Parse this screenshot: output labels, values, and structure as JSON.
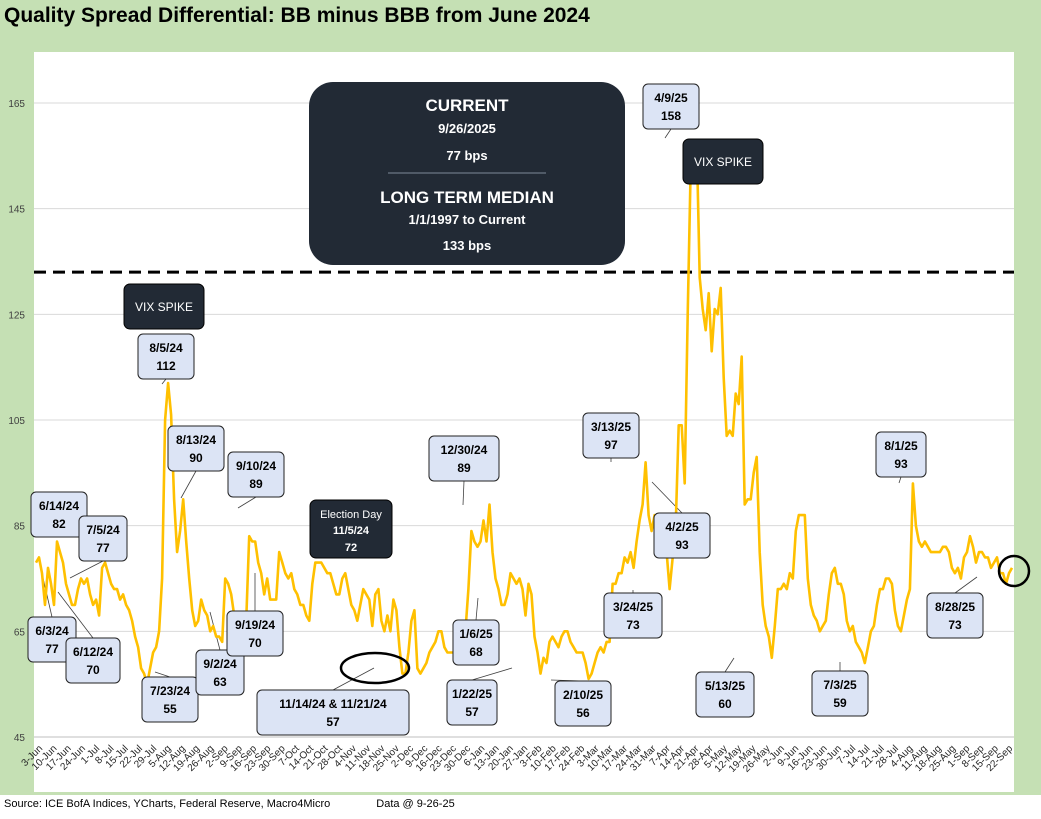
{
  "chart_data": {
    "type": "line",
    "title": "Quality Spread Differential: BB minus BBB from June 2024",
    "ylim": [
      45,
      165
    ],
    "yticks": [
      45,
      65,
      85,
      105,
      125,
      145,
      165
    ],
    "grid": "horizontal",
    "line_color": "#ffc000",
    "reference_line": {
      "value": 133,
      "style": "dashed"
    },
    "x_tick_labels": [
      "3-Jun",
      "10-Jun",
      "17-Jun",
      "24-Jun",
      "1-Jul",
      "8-Jul",
      "15-Jul",
      "22-Jul",
      "29-Jul",
      "5-Aug",
      "12-Aug",
      "19-Aug",
      "26-Aug",
      "2-Sep",
      "9-Sep",
      "16-Sep",
      "23-Sep",
      "30-Sep",
      "7-Oct",
      "14-Oct",
      "21-Oct",
      "28-Oct",
      "4-Nov",
      "11-Nov",
      "18-Nov",
      "25-Nov",
      "2-Dec",
      "9-Dec",
      "16-Dec",
      "23-Dec",
      "30-Dec",
      "6-Jan",
      "13-Jan",
      "20-Jan",
      "27-Jan",
      "3-Feb",
      "10-Feb",
      "17-Feb",
      "24-Feb",
      "3-Mar",
      "10-Mar",
      "17-Mar",
      "24-Mar",
      "31-Mar",
      "7-Apr",
      "14-Apr",
      "21-Apr",
      "28-Apr",
      "5-May",
      "12-May",
      "19-May",
      "26-May",
      "2-Jun",
      "9-Jun",
      "16-Jun",
      "23-Jun",
      "30-Jun",
      "7-Jul",
      "14-Jul",
      "21-Jul",
      "28-Jul",
      "4-Aug",
      "11-Aug",
      "18-Aug",
      "25-Aug",
      "1-Sep",
      "8-Sep",
      "15-Sep",
      "22-Sep"
    ],
    "series": [
      {
        "values": [
          78,
          79,
          76,
          70,
          77,
          74,
          70,
          82,
          80,
          78,
          74,
          72,
          70,
          70,
          73,
          75,
          74,
          75,
          72,
          70,
          71,
          68,
          77,
          78,
          76,
          74,
          73,
          73,
          71,
          72,
          70,
          69,
          67,
          64,
          62,
          58,
          57,
          55,
          58,
          61,
          62,
          65,
          75,
          105,
          112,
          106,
          90,
          80,
          84,
          90,
          82,
          75,
          69,
          66,
          67,
          71,
          69,
          68,
          65,
          66,
          64,
          64,
          63,
          75,
          74,
          72,
          68,
          64,
          67,
          66,
          67,
          83,
          82,
          82,
          78,
          76,
          72,
          75,
          71,
          71,
          71,
          80,
          78,
          76,
          75,
          76,
          73,
          72,
          70,
          70,
          68,
          67,
          74,
          78,
          78,
          78,
          77,
          76,
          76,
          74,
          72,
          72,
          75,
          76,
          73,
          70,
          69,
          67,
          70,
          73,
          72,
          71,
          66,
          72,
          73,
          67,
          65,
          68,
          65,
          71,
          69,
          62,
          57,
          57,
          61,
          67,
          69,
          58,
          57,
          58,
          59,
          61,
          62,
          63,
          65,
          65,
          62,
          61,
          61,
          61,
          61,
          62,
          63,
          65,
          73,
          84,
          82,
          81,
          82,
          86,
          82,
          89,
          80,
          75,
          73,
          70,
          70,
          72,
          76,
          75,
          74,
          75,
          73,
          68,
          74,
          72,
          64,
          61,
          57,
          60,
          59,
          63,
          64,
          63,
          62,
          64,
          65,
          65,
          63,
          62,
          61,
          61,
          61,
          59,
          56,
          57,
          59,
          61,
          62,
          61,
          63,
          63,
          74,
          74,
          76,
          76,
          79,
          78,
          80,
          77,
          82,
          86,
          89,
          97,
          87,
          84,
          87,
          83,
          86,
          82,
          80,
          73,
          79,
          85,
          104,
          104,
          93,
          125,
          153,
          153,
          158,
          132,
          126,
          122,
          129,
          118,
          126,
          125,
          130,
          113,
          102,
          103,
          102,
          110,
          108,
          117,
          89,
          90,
          90,
          95,
          98,
          80,
          70,
          66,
          64,
          60,
          66,
          73,
          73,
          74,
          73,
          76,
          75,
          84,
          87,
          87,
          87,
          75,
          70,
          68,
          67,
          65,
          66,
          67,
          72,
          76,
          77,
          74,
          74,
          72,
          67,
          65,
          66,
          63,
          62,
          61,
          59,
          62,
          65,
          66,
          70,
          73,
          73,
          75,
          75,
          74,
          69,
          66,
          65,
          68,
          71,
          73,
          93,
          85,
          82,
          81,
          82,
          81,
          80,
          80,
          80,
          80,
          81,
          81,
          80,
          77,
          76,
          77,
          75,
          79,
          80,
          83,
          81,
          78,
          80,
          80,
          79,
          79,
          77,
          78,
          79,
          76,
          76,
          74,
          76,
          77
        ]
      }
    ]
  },
  "annotations": {
    "current_box": {
      "heading": "CURRENT",
      "date": "9/26/2025",
      "value": "77 bps",
      "median_heading": "LONG TERM MEDIAN",
      "median_range": "1/1/1997 to Current",
      "median_value": "133 bps"
    },
    "vix_spike_1": "VIX SPIKE",
    "vix_spike_2": "VIX SPIKE",
    "election": {
      "line1": "Election Day",
      "line2": "11/5/24",
      "line3": "72"
    },
    "callouts": [
      {
        "date": "6/14/24",
        "value": "82"
      },
      {
        "date": "7/5/24",
        "value": "77"
      },
      {
        "date": "6/3/24",
        "value": "77"
      },
      {
        "date": "6/12/24",
        "value": "70"
      },
      {
        "date": "8/5/24",
        "value": "112"
      },
      {
        "date": "8/13/24",
        "value": "90"
      },
      {
        "date": "7/23/24",
        "value": "55"
      },
      {
        "date": "9/2/24",
        "value": "63"
      },
      {
        "date": "9/10/24",
        "value": "89"
      },
      {
        "date": "9/19/24",
        "value": "70"
      },
      {
        "date": "11/14/24 & 11/21/24",
        "value": "57"
      },
      {
        "date": "12/30/24",
        "value": "89"
      },
      {
        "date": "1/6/25",
        "value": "68"
      },
      {
        "date": "1/22/25",
        "value": "57"
      },
      {
        "date": "2/10/25",
        "value": "56"
      },
      {
        "date": "3/13/25",
        "value": "97"
      },
      {
        "date": "3/24/25",
        "value": "73"
      },
      {
        "date": "4/9/25",
        "value": "158"
      },
      {
        "date": "4/2/25",
        "value": "93"
      },
      {
        "date": "5/13/25",
        "value": "60"
      },
      {
        "date": "7/3/25",
        "value": "59"
      },
      {
        "date": "8/1/25",
        "value": "93"
      },
      {
        "date": "8/28/25",
        "value": "73"
      }
    ]
  },
  "footer": {
    "source": "Source: ICE BofA Indices, YCharts, Federal Reserve, Macro4Micro",
    "data_at": "Data @ 9-26-25"
  }
}
